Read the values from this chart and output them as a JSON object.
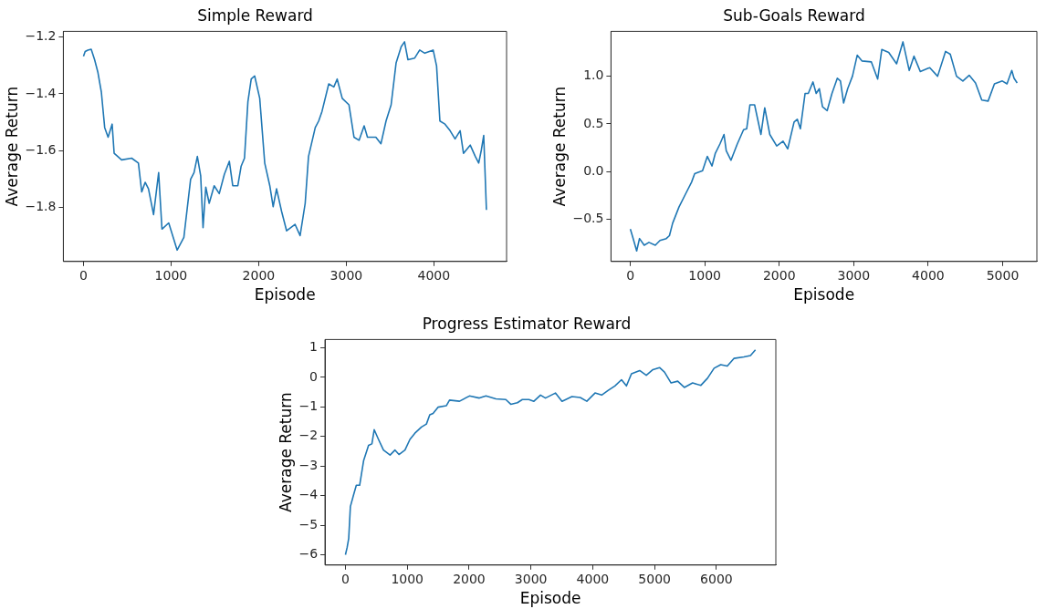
{
  "chart_data": [
    {
      "type": "line",
      "title": "Simple Reward",
      "xlabel": "Episode",
      "ylabel": "Average Return",
      "grid": false,
      "legend": false,
      "marker": "none",
      "line_style": "solid",
      "xlim": [
        -230,
        4830
      ],
      "xticks": [
        0,
        1000,
        2000,
        3000,
        4000
      ],
      "ylim": [
        -1.991,
        -1.18
      ],
      "yticks": [
        {
          "value": -1.8,
          "label": "−1.8"
        },
        {
          "value": -1.6,
          "label": "−1.6"
        },
        {
          "value": -1.4,
          "label": "−1.4"
        },
        {
          "value": -1.2,
          "label": "−1.2"
        }
      ],
      "series": [
        {
          "color": "#1f77b4",
          "x": [
            0,
            19,
            50,
            88,
            127,
            165,
            204,
            242,
            281,
            327,
            350,
            435,
            550,
            627,
            665,
            704,
            742,
            800,
            858,
            896,
            973,
            1069,
            1146,
            1223,
            1262,
            1300,
            1338,
            1365,
            1396,
            1435,
            1492,
            1550,
            1608,
            1665,
            1704,
            1762,
            1800,
            1838,
            1877,
            1915,
            1954,
            2012,
            2069,
            2127,
            2165,
            2204,
            2262,
            2319,
            2415,
            2473,
            2531,
            2569,
            2646,
            2685,
            2723,
            2800,
            2858,
            2896,
            2954,
            3031,
            3088,
            3146,
            3204,
            3242,
            3338,
            3396,
            3454,
            3512,
            3569,
            3627,
            3665,
            3704,
            3781,
            3838,
            3896,
            3992,
            4031,
            4069,
            4127,
            4185,
            4242,
            4300,
            4338,
            4415,
            4473,
            4512,
            4542,
            4569,
            4600
          ],
          "values": [
            -1.268,
            -1.251,
            -1.246,
            -1.243,
            -1.28,
            -1.325,
            -1.394,
            -1.519,
            -1.553,
            -1.507,
            -1.61,
            -1.633,
            -1.627,
            -1.644,
            -1.746,
            -1.712,
            -1.735,
            -1.826,
            -1.678,
            -1.877,
            -1.855,
            -1.951,
            -1.906,
            -1.701,
            -1.678,
            -1.621,
            -1.689,
            -1.872,
            -1.729,
            -1.786,
            -1.724,
            -1.752,
            -1.684,
            -1.638,
            -1.724,
            -1.724,
            -1.655,
            -1.627,
            -1.428,
            -1.348,
            -1.337,
            -1.416,
            -1.644,
            -1.724,
            -1.798,
            -1.735,
            -1.815,
            -1.883,
            -1.86,
            -1.9,
            -1.786,
            -1.621,
            -1.519,
            -1.496,
            -1.462,
            -1.365,
            -1.376,
            -1.348,
            -1.416,
            -1.439,
            -1.553,
            -1.564,
            -1.513,
            -1.553,
            -1.553,
            -1.576,
            -1.496,
            -1.439,
            -1.291,
            -1.234,
            -1.217,
            -1.28,
            -1.274,
            -1.246,
            -1.257,
            -1.246,
            -1.302,
            -1.496,
            -1.507,
            -1.53,
            -1.559,
            -1.53,
            -1.61,
            -1.581,
            -1.621,
            -1.644,
            -1.598,
            -1.547,
            -1.809
          ]
        }
      ]
    },
    {
      "type": "line",
      "title": "Sub-Goals Reward",
      "xlabel": "Episode",
      "ylabel": "Average Return",
      "grid": false,
      "legend": false,
      "marker": "none",
      "line_style": "solid",
      "xlim": [
        -260,
        5460
      ],
      "xticks": [
        0,
        1000,
        2000,
        3000,
        4000,
        5000
      ],
      "ylim": [
        -0.94,
        1.47
      ],
      "yticks": [
        {
          "value": -0.5,
          "label": "−0.5"
        },
        {
          "value": 0,
          "label": "0.0"
        },
        {
          "value": 0.5,
          "label": "0.5"
        },
        {
          "value": 1,
          "label": "1.0"
        }
      ],
      "series": [
        {
          "color": "#1f77b4",
          "x": [
            0,
            38,
            85,
            123,
            186,
            250,
            335,
            398,
            483,
            525,
            568,
            653,
            737,
            822,
            864,
            970,
            1034,
            1097,
            1140,
            1203,
            1258,
            1288,
            1352,
            1436,
            1521,
            1563,
            1606,
            1669,
            1754,
            1805,
            1873,
            1966,
            2051,
            2114,
            2199,
            2242,
            2284,
            2347,
            2390,
            2453,
            2496,
            2538,
            2581,
            2644,
            2708,
            2780,
            2822,
            2864,
            2919,
            2983,
            3047,
            3110,
            3237,
            3322,
            3377,
            3470,
            3576,
            3661,
            3746,
            3809,
            3894,
            4021,
            4127,
            4233,
            4297,
            4381,
            4466,
            4551,
            4636,
            4720,
            4805,
            4890,
            4996,
            5059,
            5123,
            5153,
            5195
          ],
          "values": [
            -0.6,
            -0.7,
            -0.83,
            -0.7,
            -0.77,
            -0.74,
            -0.77,
            -0.72,
            -0.7,
            -0.67,
            -0.54,
            -0.37,
            -0.24,
            -0.11,
            -0.02,
            0.01,
            0.16,
            0.06,
            0.19,
            0.29,
            0.39,
            0.22,
            0.12,
            0.29,
            0.44,
            0.45,
            0.7,
            0.7,
            0.39,
            0.67,
            0.39,
            0.27,
            0.32,
            0.24,
            0.52,
            0.55,
            0.45,
            0.82,
            0.82,
            0.94,
            0.82,
            0.87,
            0.68,
            0.64,
            0.82,
            0.98,
            0.95,
            0.72,
            0.87,
            1.0,
            1.22,
            1.16,
            1.15,
            0.97,
            1.28,
            1.25,
            1.13,
            1.36,
            1.06,
            1.21,
            1.05,
            1.09,
            1.0,
            1.26,
            1.23,
            1.0,
            0.95,
            1.01,
            0.93,
            0.75,
            0.74,
            0.92,
            0.95,
            0.92,
            1.06,
            0.98,
            0.93
          ]
        }
      ]
    },
    {
      "type": "line",
      "title": "Progress Estimator Reward",
      "xlabel": "Episode",
      "ylabel": "Average Return",
      "grid": false,
      "legend": false,
      "marker": "none",
      "line_style": "solid",
      "xlim": [
        -331,
        6961
      ],
      "xticks": [
        0,
        1000,
        2000,
        3000,
        4000,
        5000,
        6000
      ],
      "ylim": [
        -6.35,
        1.28
      ],
      "yticks": [
        {
          "value": -6,
          "label": "−6"
        },
        {
          "value": -5,
          "label": "−5"
        },
        {
          "value": -4,
          "label": "−4"
        },
        {
          "value": -3,
          "label": "−3"
        },
        {
          "value": -2,
          "label": "−2"
        },
        {
          "value": -1,
          "label": "−1"
        },
        0,
        1
      ],
      "series": [
        {
          "color": "#1f77b4",
          "x": [
            0,
            27,
            53,
            80,
            134,
            176,
            230,
            294,
            374,
            428,
            465,
            535,
            615,
            722,
            802,
            866,
            963,
            1043,
            1123,
            1230,
            1310,
            1364,
            1417,
            1497,
            1631,
            1684,
            1845,
            2005,
            2166,
            2273,
            2433,
            2594,
            2674,
            2781,
            2861,
            2968,
            3048,
            3155,
            3235,
            3396,
            3503,
            3663,
            3797,
            3904,
            4037,
            4144,
            4251,
            4358,
            4465,
            4545,
            4626,
            4759,
            4866,
            4973,
            5080,
            5160,
            5267,
            5374,
            5481,
            5615,
            5749,
            5856,
            5963,
            6070,
            6176,
            6283,
            6444,
            6551,
            6631
          ],
          "values": [
            -6.0,
            -5.76,
            -5.45,
            -4.37,
            -3.96,
            -3.65,
            -3.65,
            -2.82,
            -2.3,
            -2.25,
            -1.77,
            -2.1,
            -2.46,
            -2.63,
            -2.46,
            -2.61,
            -2.46,
            -2.1,
            -1.89,
            -1.68,
            -1.58,
            -1.27,
            -1.22,
            -1.01,
            -0.96,
            -0.77,
            -0.81,
            -0.63,
            -0.7,
            -0.63,
            -0.73,
            -0.75,
            -0.91,
            -0.86,
            -0.75,
            -0.75,
            -0.81,
            -0.6,
            -0.7,
            -0.53,
            -0.81,
            -0.65,
            -0.68,
            -0.81,
            -0.53,
            -0.6,
            -0.44,
            -0.29,
            -0.08,
            -0.29,
            0.12,
            0.23,
            0.07,
            0.26,
            0.33,
            0.18,
            -0.19,
            -0.13,
            -0.34,
            -0.19,
            -0.27,
            -0.03,
            0.31,
            0.43,
            0.38,
            0.64,
            0.69,
            0.74,
            0.93
          ]
        }
      ]
    }
  ]
}
